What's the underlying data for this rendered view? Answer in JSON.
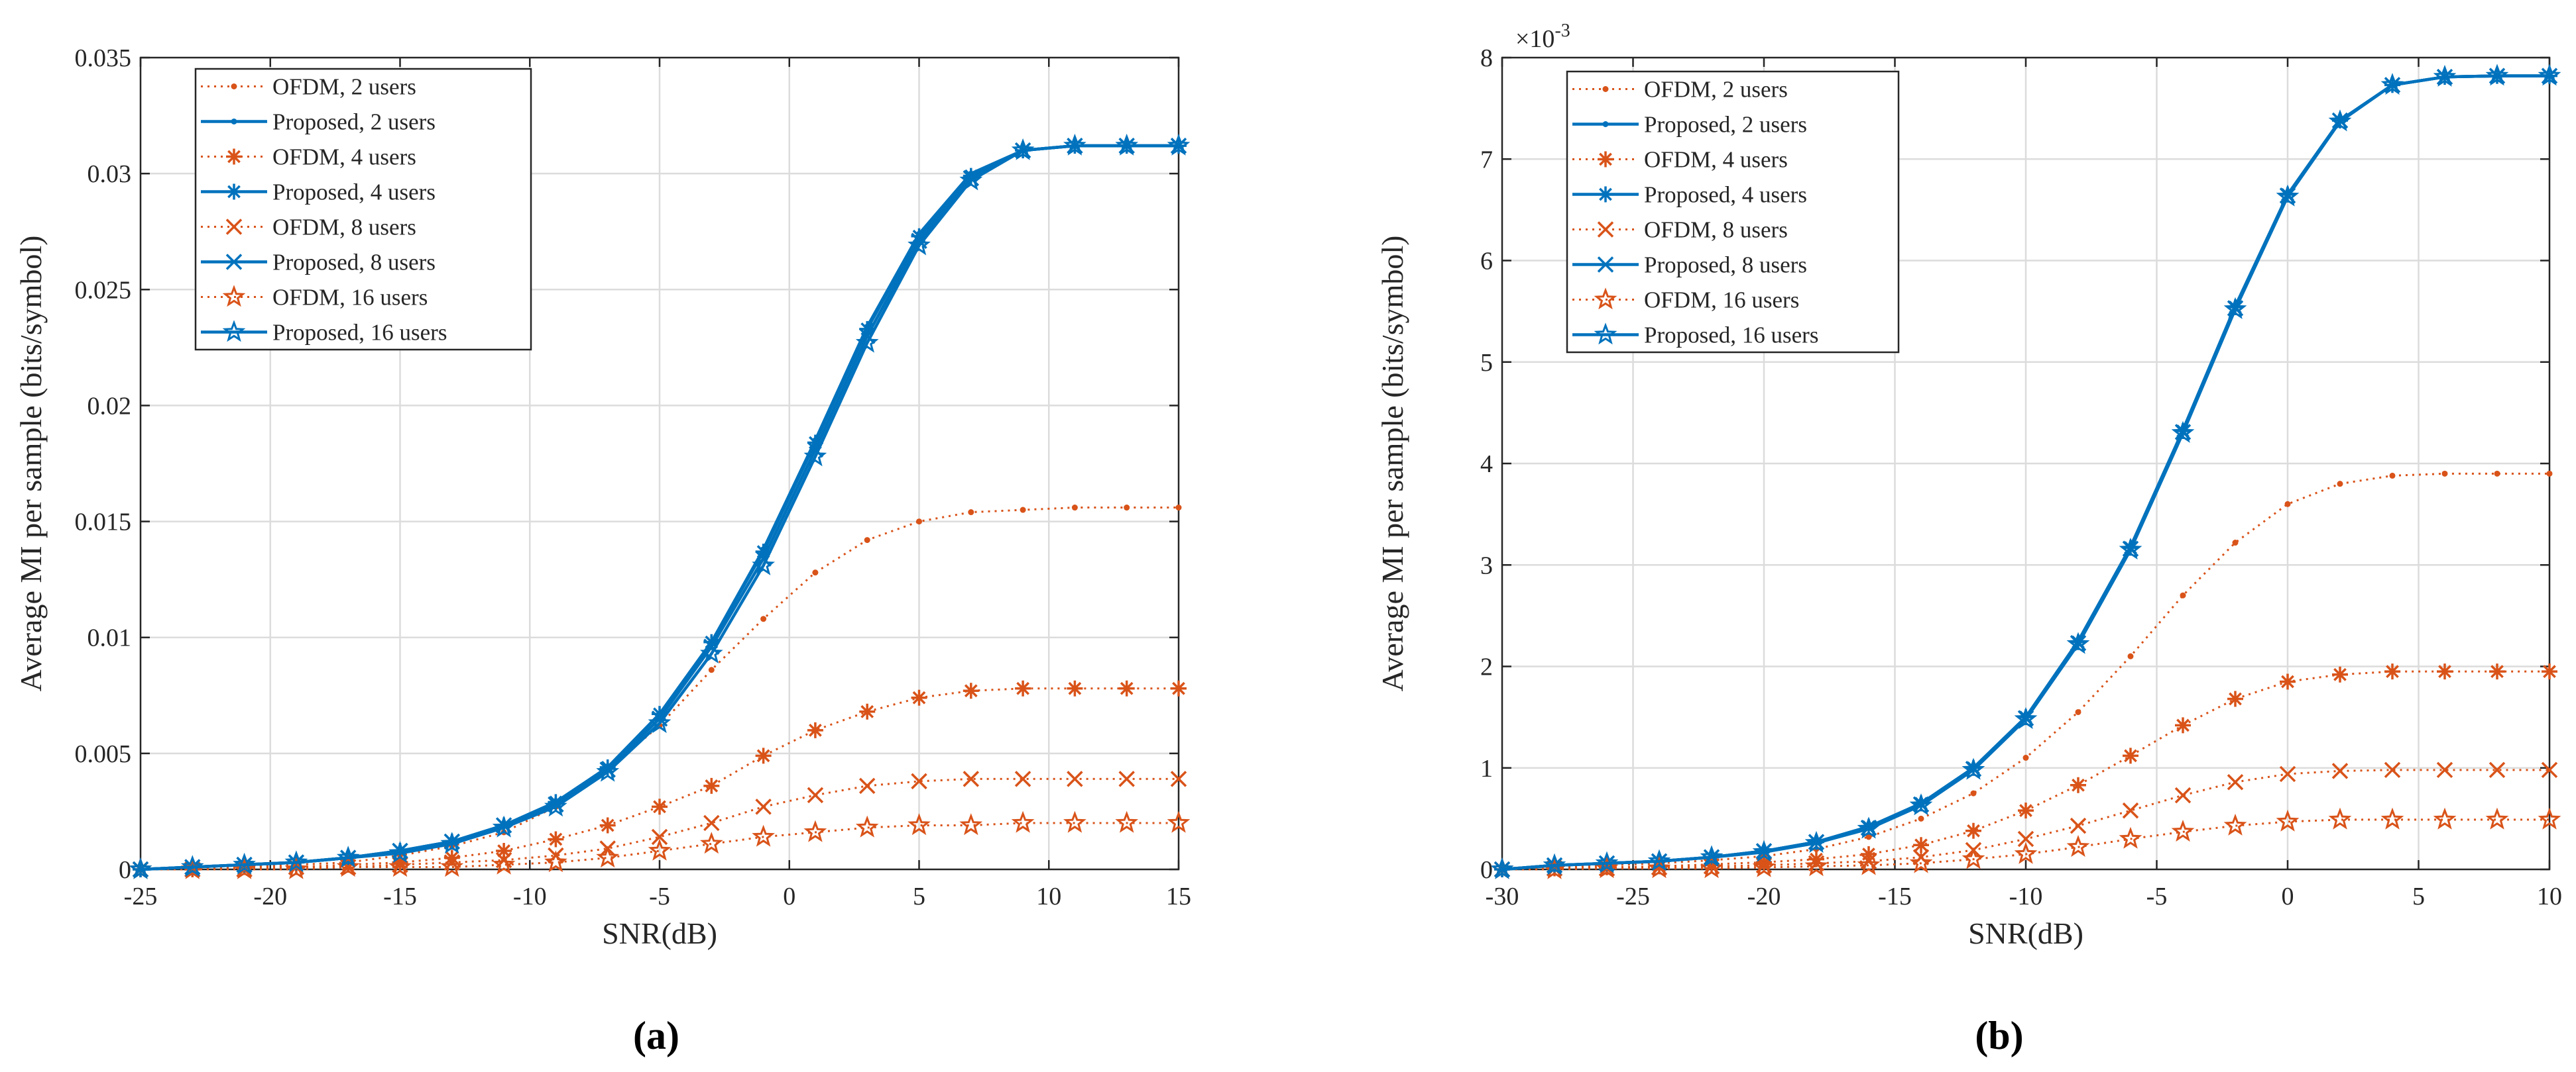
{
  "colors": {
    "ofdm": "#D95319",
    "proposed": "#0072BD"
  },
  "series_style": [
    {
      "family": "ofdm",
      "marker": "dot"
    },
    {
      "family": "proposed",
      "marker": "dot"
    },
    {
      "family": "ofdm",
      "marker": "asterisk"
    },
    {
      "family": "proposed",
      "marker": "asterisk"
    },
    {
      "family": "ofdm",
      "marker": "x"
    },
    {
      "family": "proposed",
      "marker": "x"
    },
    {
      "family": "ofdm",
      "marker": "star"
    },
    {
      "family": "proposed",
      "marker": "star"
    }
  ],
  "chart_data": [
    {
      "type": "line",
      "caption": "(a)",
      "xlabel": "SNR(dB)",
      "ylabel": "Average MI per sample (bits/symbol)",
      "exponent_label": "",
      "xlim": [
        -25,
        15
      ],
      "ylim": [
        0,
        0.035
      ],
      "xticks": [
        -25,
        -20,
        -15,
        -10,
        -5,
        0,
        5,
        10,
        15
      ],
      "xtick_labels": [
        "-25",
        "-20",
        "-15",
        "-10",
        "-5",
        "0",
        "5",
        "10",
        "15"
      ],
      "yticks": [
        0,
        0.005,
        0.01,
        0.015,
        0.02,
        0.025,
        0.03,
        0.035
      ],
      "ytick_labels": [
        "0",
        "0.005",
        "0.01",
        "0.015",
        "0.02",
        "0.025",
        "0.03",
        "0.035"
      ],
      "grid": true,
      "legend_position": "top-left",
      "x": [
        -25,
        -23,
        -21,
        -19,
        -17,
        -15,
        -13,
        -11,
        -9,
        -7,
        -5,
        -3,
        -1,
        1,
        3,
        5,
        7,
        9,
        11,
        13,
        15
      ],
      "series": [
        {
          "name": "OFDM, 2 users",
          "values": [
            0,
            0.0001,
            0.0001,
            0.0002,
            0.0003,
            0.0006,
            0.001,
            0.0016,
            0.0027,
            0.0043,
            0.0062,
            0.0086,
            0.0108,
            0.0128,
            0.0142,
            0.015,
            0.0154,
            0.0155,
            0.0156,
            0.0156,
            0.0156
          ]
        },
        {
          "name": "Proposed, 2 users",
          "values": [
            0,
            0.0001,
            0.0002,
            0.0003,
            0.0005,
            0.0008,
            0.0012,
            0.0019,
            0.0029,
            0.0044,
            0.0067,
            0.0098,
            0.0138,
            0.0185,
            0.0234,
            0.0274,
            0.03,
            0.031,
            0.0312,
            0.0312,
            0.0312
          ]
        },
        {
          "name": "OFDM, 4 users",
          "values": [
            0,
            0,
            0.0001,
            0.0001,
            0.0002,
            0.0003,
            0.0005,
            0.0008,
            0.0013,
            0.0019,
            0.0027,
            0.0036,
            0.0049,
            0.006,
            0.0068,
            0.0074,
            0.0077,
            0.0078,
            0.0078,
            0.0078,
            0.0078
          ]
        },
        {
          "name": "Proposed, 4 users",
          "values": [
            0,
            0.0001,
            0.0002,
            0.0003,
            0.0005,
            0.0008,
            0.0012,
            0.0019,
            0.0029,
            0.0044,
            0.0067,
            0.0098,
            0.0137,
            0.0184,
            0.0233,
            0.0273,
            0.0299,
            0.031,
            0.0312,
            0.0312,
            0.0312
          ]
        },
        {
          "name": "OFDM, 8 users",
          "values": [
            0,
            0,
            0,
            0.0001,
            0.0001,
            0.0002,
            0.0003,
            0.0004,
            0.0006,
            0.0009,
            0.0014,
            0.002,
            0.0027,
            0.0032,
            0.0036,
            0.0038,
            0.0039,
            0.0039,
            0.0039,
            0.0039,
            0.0039
          ]
        },
        {
          "name": "Proposed, 8 users",
          "values": [
            0,
            0.0001,
            0.0002,
            0.0003,
            0.0005,
            0.0008,
            0.0012,
            0.0019,
            0.0028,
            0.0043,
            0.0065,
            0.0096,
            0.0134,
            0.0181,
            0.023,
            0.0271,
            0.0298,
            0.031,
            0.0312,
            0.0312,
            0.0312
          ]
        },
        {
          "name": "OFDM, 16 users",
          "values": [
            0,
            0,
            0,
            0,
            0.0001,
            0.0001,
            0.0001,
            0.0002,
            0.0003,
            0.0005,
            0.0008,
            0.0011,
            0.0014,
            0.0016,
            0.0018,
            0.0019,
            0.0019,
            0.002,
            0.002,
            0.002,
            0.002
          ]
        },
        {
          "name": "Proposed, 16 users",
          "values": [
            0,
            0.0001,
            0.0002,
            0.0003,
            0.0005,
            0.0007,
            0.0011,
            0.0018,
            0.0027,
            0.0042,
            0.0063,
            0.0093,
            0.0131,
            0.0178,
            0.0227,
            0.0269,
            0.0297,
            0.031,
            0.0312,
            0.0312,
            0.0312
          ]
        }
      ]
    },
    {
      "type": "line",
      "caption": "(b)",
      "xlabel": "SNR(dB)",
      "ylabel": "Average MI per sample (bits/symbol)",
      "exponent_label": "×10^-3",
      "xlim": [
        -30,
        10
      ],
      "ylim": [
        0,
        8
      ],
      "xticks": [
        -30,
        -25,
        -20,
        -15,
        -10,
        -5,
        0,
        5,
        10
      ],
      "xtick_labels": [
        "-30",
        "-25",
        "-20",
        "-15",
        "-10",
        "-5",
        "0",
        "5",
        "10"
      ],
      "yticks": [
        0,
        1,
        2,
        3,
        4,
        5,
        6,
        7,
        8
      ],
      "ytick_labels": [
        "0",
        "1",
        "2",
        "3",
        "4",
        "5",
        "6",
        "7",
        "8"
      ],
      "grid": true,
      "legend_position": "top-left",
      "x": [
        -30,
        -28,
        -26,
        -24,
        -22,
        -20,
        -18,
        -16,
        -14,
        -12,
        -10,
        -8,
        -6,
        -4,
        -2,
        0,
        2,
        4,
        6,
        8,
        10
      ],
      "series": [
        {
          "name": "OFDM, 2 users",
          "values": [
            0,
            0.02,
            0.04,
            0.06,
            0.09,
            0.13,
            0.2,
            0.32,
            0.5,
            0.75,
            1.1,
            1.55,
            2.1,
            2.7,
            3.22,
            3.6,
            3.8,
            3.88,
            3.9,
            3.9,
            3.9
          ]
        },
        {
          "name": "Proposed, 2 users",
          "values": [
            0,
            0.04,
            0.06,
            0.08,
            0.12,
            0.18,
            0.27,
            0.42,
            0.65,
            1.0,
            1.5,
            2.25,
            3.18,
            4.33,
            5.55,
            6.65,
            7.38,
            7.73,
            7.81,
            7.82,
            7.82
          ]
        },
        {
          "name": "OFDM, 4 users",
          "values": [
            0,
            0.01,
            0.02,
            0.03,
            0.05,
            0.07,
            0.1,
            0.15,
            0.24,
            0.38,
            0.58,
            0.83,
            1.12,
            1.42,
            1.68,
            1.85,
            1.92,
            1.95,
            1.95,
            1.95,
            1.95
          ]
        },
        {
          "name": "Proposed, 4 users",
          "values": [
            0,
            0.04,
            0.06,
            0.08,
            0.12,
            0.18,
            0.27,
            0.42,
            0.65,
            1.0,
            1.5,
            2.24,
            3.17,
            4.32,
            5.54,
            6.65,
            7.38,
            7.73,
            7.81,
            7.82,
            7.82
          ]
        },
        {
          "name": "OFDM, 8 users",
          "values": [
            0,
            0.01,
            0.01,
            0.02,
            0.03,
            0.04,
            0.06,
            0.08,
            0.12,
            0.19,
            0.3,
            0.43,
            0.58,
            0.73,
            0.86,
            0.94,
            0.97,
            0.98,
            0.98,
            0.98,
            0.98
          ]
        },
        {
          "name": "Proposed, 8 users",
          "values": [
            0,
            0.04,
            0.06,
            0.08,
            0.12,
            0.18,
            0.27,
            0.41,
            0.64,
            0.99,
            1.49,
            2.23,
            3.16,
            4.31,
            5.53,
            6.64,
            7.38,
            7.73,
            7.81,
            7.82,
            7.82
          ]
        },
        {
          "name": "OFDM, 16 users",
          "values": [
            0,
            0,
            0.01,
            0.01,
            0.01,
            0.02,
            0.03,
            0.04,
            0.06,
            0.1,
            0.15,
            0.22,
            0.3,
            0.37,
            0.43,
            0.47,
            0.49,
            0.49,
            0.49,
            0.49,
            0.49
          ]
        },
        {
          "name": "Proposed, 16 users",
          "values": [
            0,
            0.04,
            0.06,
            0.08,
            0.12,
            0.17,
            0.26,
            0.4,
            0.63,
            0.98,
            1.48,
            2.22,
            3.15,
            4.3,
            5.52,
            6.63,
            7.37,
            7.73,
            7.81,
            7.82,
            7.82
          ]
        }
      ]
    }
  ]
}
